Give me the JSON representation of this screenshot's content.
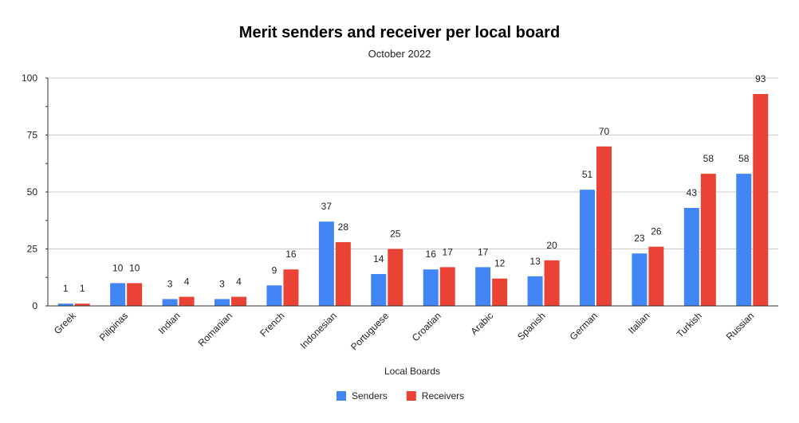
{
  "chart_data": {
    "type": "bar",
    "title": "Merit senders and receiver per local board",
    "subtitle": "October 2022",
    "xlabel": "Local Boards",
    "ylabel": "",
    "ylim": [
      0,
      100
    ],
    "yticks": [
      0,
      25,
      50,
      75,
      100
    ],
    "grid": true,
    "legend_position": "bottom",
    "categories": [
      "Greek",
      "Pilipinas",
      "Indian",
      "Romanian",
      "French",
      "Indonesian",
      "Portuguese",
      "Croatian",
      "Arabic",
      "Spanish",
      "German",
      "Italian",
      "Turkish",
      "Russian"
    ],
    "series": [
      {
        "name": "Senders",
        "color": "#4285f4",
        "values": [
          1,
          10,
          3,
          3,
          9,
          37,
          14,
          16,
          17,
          13,
          51,
          23,
          43,
          58
        ]
      },
      {
        "name": "Receivers",
        "color": "#ea4335",
        "values": [
          1,
          10,
          4,
          4,
          16,
          28,
          25,
          17,
          12,
          20,
          70,
          26,
          58,
          93
        ]
      }
    ]
  }
}
